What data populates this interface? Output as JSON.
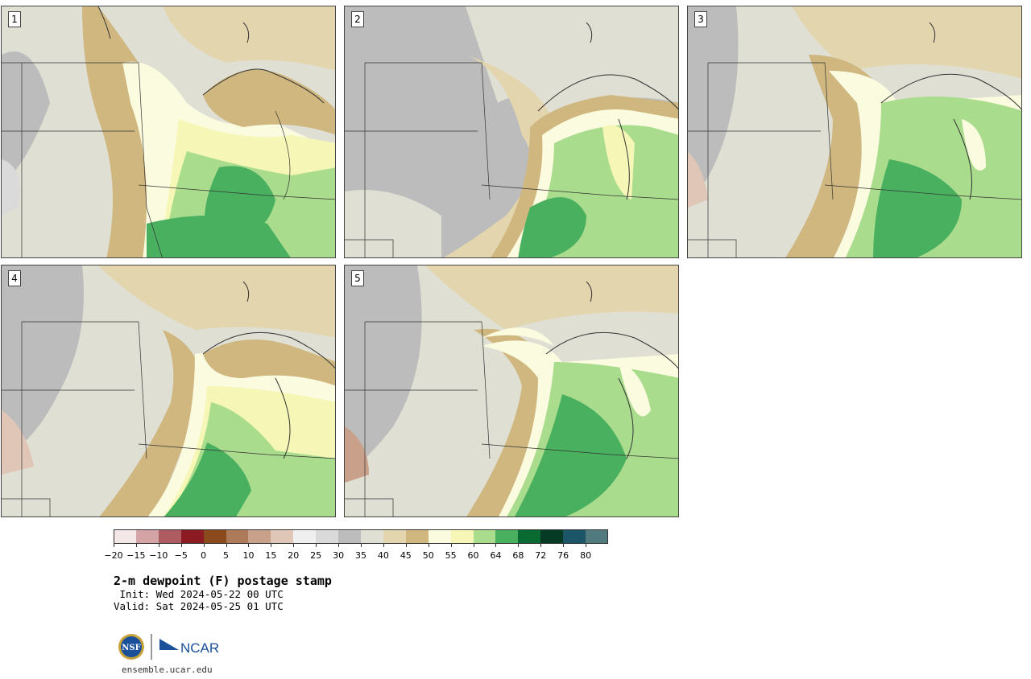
{
  "panels": [
    {
      "label": "1"
    },
    {
      "label": "2"
    },
    {
      "label": "3"
    },
    {
      "label": "4"
    },
    {
      "label": "5"
    }
  ],
  "colorbar": {
    "ticks": [
      "−20",
      "−15",
      "−10",
      "−5",
      "0",
      "5",
      "10",
      "15",
      "20",
      "25",
      "30",
      "35",
      "40",
      "45",
      "50",
      "55",
      "60",
      "64",
      "68",
      "72",
      "76",
      "80"
    ],
    "colors": [
      "#f3e7e7",
      "#d4a3a5",
      "#ae5c62",
      "#8b1a22",
      "#8b4a1b",
      "#ad7a5a",
      "#c9a18a",
      "#e0c6b6",
      "#efefef",
      "#dadada",
      "#bcbcbc",
      "#dfdfd4",
      "#e3d5ae",
      "#cfb77f",
      "#fbfbe0",
      "#f6f7b6",
      "#a9dc8c",
      "#49b05f",
      "#0a6b32",
      "#053b25",
      "#1d5568",
      "#507a7e"
    ]
  },
  "title": "2-m dewpoint (F) postage stamp",
  "init": " Init: Wed 2024-05-22 00 UTC",
  "valid": "Valid: Sat 2024-05-25 01 UTC",
  "logos": {
    "nsf": "NSF",
    "ncar": "NCAR"
  },
  "site": "ensemble.ucar.edu"
}
